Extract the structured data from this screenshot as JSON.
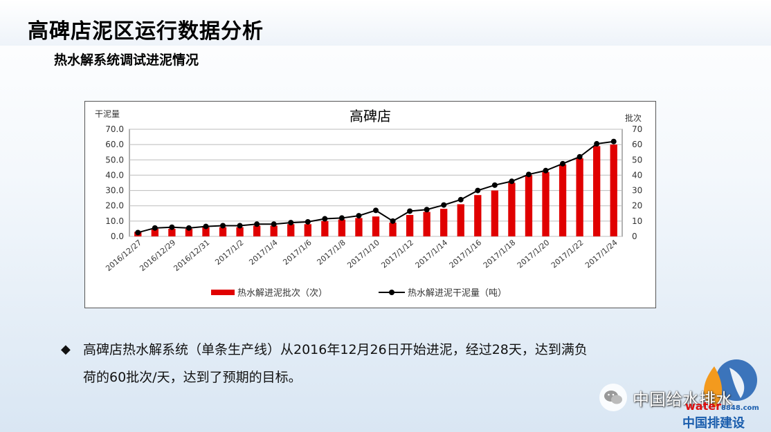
{
  "slide": {
    "title": "高碑店泥区运行数据分析",
    "subtitle": "热水解系统调试进泥情况",
    "bullet_mark": "◆",
    "bullet_line1": "高碑店热水解系统（单条生产线）从2016年12月26日开始进泥，经过28天，达到满负",
    "bullet_line2": "荷的60批次/天，达到了预期的目标。"
  },
  "watermark": {
    "text": "中国给水排水",
    "logo_word_red": "water",
    "logo_word_blue": "8848.com",
    "logo_sub": "中国排建设"
  },
  "colors": {
    "bar": "#e00000",
    "line": "#000000",
    "title_text": "#000000"
  },
  "chart_data": {
    "type": "bar",
    "title": "高碑店",
    "ylabel_left": "干泥量",
    "ylabel_right": "批次",
    "ylim_left": [
      0,
      70
    ],
    "ylim_right": [
      0,
      70
    ],
    "left_ticks": [
      "0.0",
      "10.0",
      "20.0",
      "30.0",
      "40.0",
      "50.0",
      "60.0",
      "70.0"
    ],
    "right_ticks": [
      "0",
      "10",
      "20",
      "30",
      "40",
      "50",
      "60",
      "70"
    ],
    "x_tick_labels": [
      "2016/12/27",
      "2016/12/29",
      "2016/12/31",
      "2017/1/2",
      "2017/1/4",
      "2017/1/6",
      "2017/1/8",
      "2017/1/10",
      "2017/1/12",
      "2017/1/14",
      "2017/1/16",
      "2017/1/18",
      "2017/1/20",
      "2017/1/22",
      "2017/1/24"
    ],
    "categories": [
      "2016/12/27",
      "2016/12/28",
      "2016/12/29",
      "2016/12/30",
      "2016/12/31",
      "2017/1/1",
      "2017/1/2",
      "2017/1/3",
      "2017/1/4",
      "2017/1/5",
      "2017/1/6",
      "2017/1/7",
      "2017/1/8",
      "2017/1/9",
      "2017/1/10",
      "2017/1/11",
      "2017/1/12",
      "2017/1/13",
      "2017/1/14",
      "2017/1/15",
      "2017/1/16",
      "2017/1/17",
      "2017/1/18",
      "2017/1/19",
      "2017/1/20",
      "2017/1/21",
      "2017/1/22",
      "2017/1/23",
      "2017/1/24"
    ],
    "series": [
      {
        "name": "热水解进泥批次（次）",
        "kind": "bar",
        "axis": "right",
        "values": [
          3,
          5,
          5,
          5,
          6,
          6,
          6,
          7,
          7,
          8,
          8,
          10,
          11,
          12,
          13,
          9,
          14,
          16,
          18,
          21,
          27,
          30,
          35,
          40,
          42,
          47,
          51,
          59,
          60
        ]
      },
      {
        "name": "热水解进泥干泥量（吨）",
        "kind": "line",
        "axis": "left",
        "values": [
          2.5,
          5.5,
          6.0,
          5.5,
          6.5,
          7.0,
          7.0,
          8.0,
          8.0,
          9.0,
          9.5,
          11.5,
          12.0,
          13.5,
          17.0,
          10.0,
          16.5,
          17.5,
          20.5,
          24.0,
          30.0,
          33.5,
          36.0,
          40.5,
          43.0,
          47.5,
          52.0,
          60.5,
          62.0
        ]
      }
    ],
    "legend_position": "bottom",
    "grid": "horizontal"
  }
}
